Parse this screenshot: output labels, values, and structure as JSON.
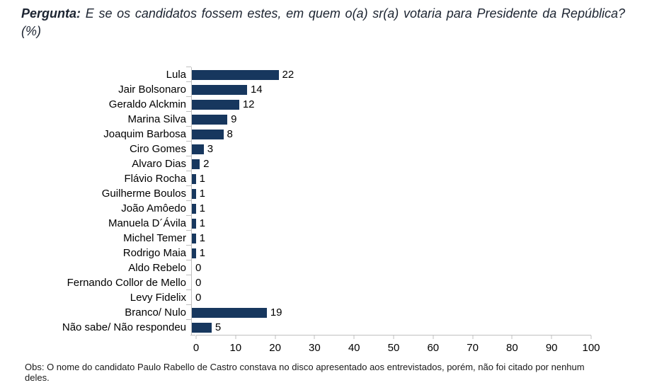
{
  "header": {
    "label": "Pergunta:",
    "question": " E se os candidatos fossem estes, em quem o(a) sr(a) votaria para Presidente da República? (%)"
  },
  "chart_data": {
    "type": "bar",
    "orientation": "horizontal",
    "title": "",
    "xlabel": "",
    "ylabel": "",
    "categories": [
      "Lula",
      "Jair Bolsonaro",
      "Geraldo Alckmin",
      "Marina Silva",
      "Joaquim Barbosa",
      "Ciro Gomes",
      "Alvaro Dias",
      "Flávio Rocha",
      "Guilherme Boulos",
      "João Amôedo",
      "Manuela D´Ávila",
      "Michel Temer",
      "Rodrigo Maia",
      "Aldo Rebelo",
      "Fernando Collor de Mello",
      "Levy Fidelix",
      "Branco/ Nulo",
      "Não sabe/ Não respondeu"
    ],
    "values": [
      22,
      14,
      12,
      9,
      8,
      3,
      2,
      1,
      1,
      1,
      1,
      1,
      1,
      0,
      0,
      0,
      19,
      5
    ],
    "xlim": [
      0,
      100
    ],
    "xticks": [
      0,
      10,
      20,
      30,
      40,
      50,
      60,
      70,
      80,
      90,
      100
    ],
    "value_labels": true,
    "grid": false,
    "legend": false,
    "bar_color": "#17375e",
    "axis_color": "#bfbfbf"
  },
  "footnote": "Obs: O nome do candidato Paulo Rabello de Castro constava no disco apresentado aos entrevistados, porém, não foi citado por nenhum deles."
}
